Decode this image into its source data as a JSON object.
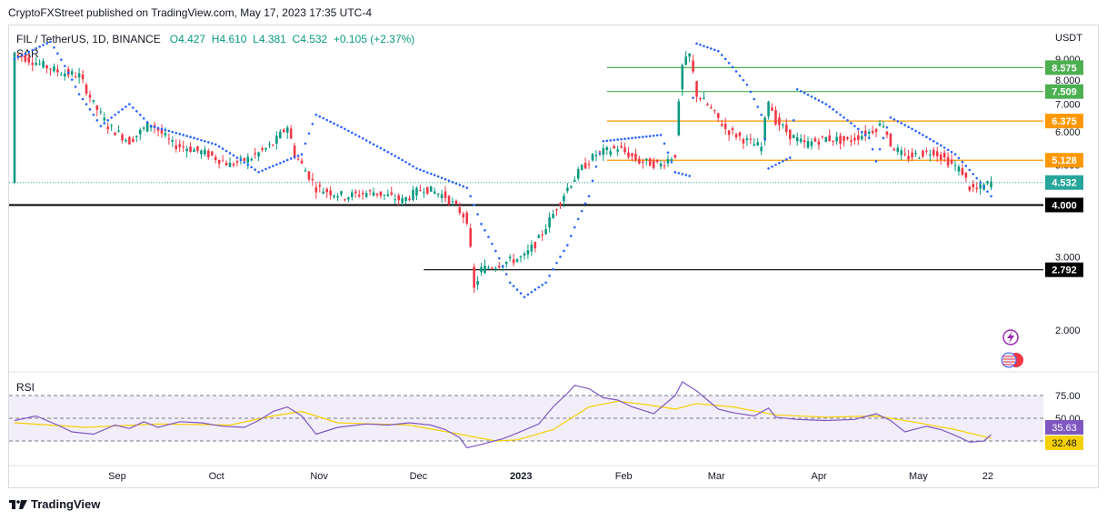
{
  "header": {
    "published": "CryptoFXStreet published on TradingView.com, May 17, 2023 17:35 UTC-4",
    "symbol": "FIL / TetherUS, 1D, BINANCE",
    "open": "O4.427",
    "high": "H4.610",
    "low": "L4.381",
    "close": "C4.532",
    "change": "+0.105 (+2.37%)",
    "indicator": "SAR",
    "currency": "USDT"
  },
  "footer": {
    "brand": "TradingView"
  },
  "colors": {
    "up": "#089981",
    "down": "#f23645",
    "sar": "#2962ff",
    "rsi": "#7e57c2",
    "rsi_ma": "#f5d000",
    "green_level": "#4caf50",
    "orange_level": "#ff9800",
    "last_price": "#26a69a"
  },
  "chart_data": {
    "type": "candlestick",
    "title": "FIL / TetherUS, 1D, BINANCE",
    "y_axis": {
      "ticks": [
        "2.000",
        "3.000",
        "4.000",
        "5.000",
        "6.000",
        "7.000",
        "8.000",
        "9.000"
      ],
      "min": 1.6,
      "max": 10.2,
      "scale": "log"
    },
    "x_axis": {
      "ticks": [
        "Sep",
        "Oct",
        "Nov",
        "Dec",
        "2023",
        "Feb",
        "Mar",
        "Apr",
        "May",
        "22"
      ]
    },
    "last_price": {
      "value": 4.532,
      "label": "4.532"
    },
    "horizontal_levels": [
      {
        "value": 8.575,
        "label": "8.575",
        "color": "green"
      },
      {
        "value": 7.509,
        "label": "7.509",
        "color": "green"
      },
      {
        "value": 6.375,
        "label": "6.375",
        "color": "orange"
      },
      {
        "value": 5.128,
        "label": "5.128",
        "color": "orange"
      },
      {
        "value": 4.0,
        "label": "4.000",
        "color": "black"
      },
      {
        "value": 2.792,
        "label": "2.792",
        "color": "black"
      }
    ],
    "price_path": [
      [
        0,
        9.3
      ],
      [
        5,
        8.9
      ],
      [
        12,
        8.4
      ],
      [
        18,
        8.2
      ],
      [
        22,
        7.0
      ],
      [
        26,
        6.2
      ],
      [
        32,
        5.7
      ],
      [
        38,
        6.3
      ],
      [
        44,
        5.6
      ],
      [
        48,
        5.5
      ],
      [
        54,
        5.3
      ],
      [
        60,
        5.0
      ],
      [
        66,
        5.2
      ],
      [
        72,
        5.6
      ],
      [
        76,
        6.2
      ],
      [
        78,
        5.3
      ],
      [
        84,
        4.4
      ],
      [
        92,
        4.2
      ],
      [
        100,
        4.3
      ],
      [
        108,
        4.1
      ],
      [
        114,
        4.4
      ],
      [
        120,
        4.2
      ],
      [
        126,
        3.7
      ],
      [
        128,
        2.5
      ],
      [
        130,
        2.8
      ],
      [
        136,
        2.9
      ],
      [
        142,
        3.0
      ],
      [
        146,
        3.3
      ],
      [
        150,
        3.8
      ],
      [
        154,
        4.4
      ],
      [
        158,
        4.9
      ],
      [
        162,
        5.3
      ],
      [
        168,
        5.5
      ],
      [
        174,
        5.1
      ],
      [
        180,
        5.0
      ],
      [
        184,
        5.3
      ],
      [
        186,
        8.6
      ],
      [
        188,
        9.2
      ],
      [
        190,
        7.4
      ],
      [
        194,
        6.8
      ],
      [
        198,
        6.1
      ],
      [
        204,
        5.7
      ],
      [
        208,
        5.5
      ],
      [
        210,
        7.2
      ],
      [
        212,
        6.4
      ],
      [
        216,
        5.9
      ],
      [
        220,
        5.6
      ],
      [
        226,
        5.8
      ],
      [
        232,
        5.7
      ],
      [
        238,
        6.0
      ],
      [
        242,
        6.3
      ],
      [
        244,
        5.6
      ],
      [
        248,
        5.2
      ],
      [
        252,
        5.3
      ],
      [
        256,
        5.4
      ],
      [
        260,
        5.1
      ],
      [
        264,
        4.8
      ],
      [
        266,
        4.4
      ],
      [
        268,
        4.35
      ],
      [
        270,
        4.45
      ],
      [
        272,
        4.532
      ]
    ],
    "sar_path": [
      [
        0,
        9.0
      ],
      [
        10,
        9.9
      ],
      [
        18,
        7.4
      ],
      [
        24,
        6.2
      ],
      [
        32,
        7.0
      ],
      [
        38,
        6.2
      ],
      [
        44,
        6.0
      ],
      [
        56,
        5.6
      ],
      [
        68,
        4.8
      ],
      [
        80,
        5.3
      ],
      [
        84,
        6.6
      ],
      [
        100,
        5.6
      ],
      [
        112,
        4.9
      ],
      [
        126,
        4.4
      ],
      [
        130,
        3.6
      ],
      [
        138,
        2.6
      ],
      [
        142,
        2.4
      ],
      [
        148,
        2.6
      ],
      [
        154,
        3.2
      ],
      [
        160,
        4.2
      ],
      [
        164,
        5.7
      ],
      [
        172,
        5.8
      ],
      [
        180,
        5.9
      ],
      [
        184,
        4.8
      ],
      [
        188,
        4.7
      ],
      [
        190,
        9.8
      ],
      [
        196,
        9.4
      ],
      [
        204,
        7.8
      ],
      [
        208,
        6.6
      ],
      [
        210,
        4.9
      ],
      [
        216,
        5.2
      ],
      [
        218,
        7.6
      ],
      [
        226,
        7.0
      ],
      [
        234,
        6.2
      ],
      [
        238,
        5.8
      ],
      [
        240,
        5.1
      ],
      [
        244,
        6.5
      ],
      [
        256,
        5.7
      ],
      [
        262,
        5.3
      ],
      [
        272,
        4.2
      ]
    ],
    "rsi": {
      "label": "RSI",
      "ticks": [
        "75.00",
        "50.00"
      ],
      "upper": 70,
      "mid": 50,
      "lower": 30,
      "min": 10,
      "max": 90,
      "value": 35.63,
      "value_label": "35.63",
      "ma_value": 32.48,
      "ma_label": "32.48",
      "rsi_path": [
        [
          0,
          48
        ],
        [
          6,
          52
        ],
        [
          12,
          44
        ],
        [
          16,
          38
        ],
        [
          22,
          36
        ],
        [
          28,
          44
        ],
        [
          32,
          41
        ],
        [
          36,
          47
        ],
        [
          40,
          42
        ],
        [
          46,
          47
        ],
        [
          52,
          46
        ],
        [
          58,
          43
        ],
        [
          64,
          42
        ],
        [
          68,
          48
        ],
        [
          72,
          56
        ],
        [
          76,
          60
        ],
        [
          80,
          52
        ],
        [
          84,
          36
        ],
        [
          90,
          42
        ],
        [
          98,
          45
        ],
        [
          104,
          44
        ],
        [
          110,
          46
        ],
        [
          116,
          44
        ],
        [
          120,
          40
        ],
        [
          124,
          33
        ],
        [
          126,
          24
        ],
        [
          130,
          27
        ],
        [
          136,
          32
        ],
        [
          140,
          37
        ],
        [
          146,
          45
        ],
        [
          150,
          60
        ],
        [
          154,
          72
        ],
        [
          156,
          79
        ],
        [
          160,
          76
        ],
        [
          164,
          68
        ],
        [
          168,
          66
        ],
        [
          172,
          60
        ],
        [
          178,
          54
        ],
        [
          184,
          70
        ],
        [
          186,
          82
        ],
        [
          190,
          74
        ],
        [
          196,
          58
        ],
        [
          200,
          55
        ],
        [
          206,
          52
        ],
        [
          210,
          59
        ],
        [
          212,
          51
        ],
        [
          218,
          49
        ],
        [
          226,
          48
        ],
        [
          234,
          49
        ],
        [
          240,
          54
        ],
        [
          244,
          48
        ],
        [
          248,
          38
        ],
        [
          254,
          43
        ],
        [
          258,
          40
        ],
        [
          262,
          35
        ],
        [
          266,
          29
        ],
        [
          270,
          30
        ],
        [
          272,
          35.6
        ]
      ],
      "ma_path": [
        [
          0,
          46
        ],
        [
          20,
          42
        ],
        [
          40,
          45
        ],
        [
          60,
          44
        ],
        [
          72,
          52
        ],
        [
          80,
          56
        ],
        [
          90,
          46
        ],
        [
          110,
          44
        ],
        [
          124,
          36
        ],
        [
          134,
          30
        ],
        [
          140,
          31
        ],
        [
          150,
          40
        ],
        [
          160,
          60
        ],
        [
          168,
          65
        ],
        [
          176,
          62
        ],
        [
          184,
          58
        ],
        [
          190,
          63
        ],
        [
          200,
          60
        ],
        [
          212,
          53
        ],
        [
          226,
          51
        ],
        [
          240,
          52
        ],
        [
          250,
          47
        ],
        [
          262,
          40
        ],
        [
          272,
          32.5
        ]
      ]
    }
  }
}
